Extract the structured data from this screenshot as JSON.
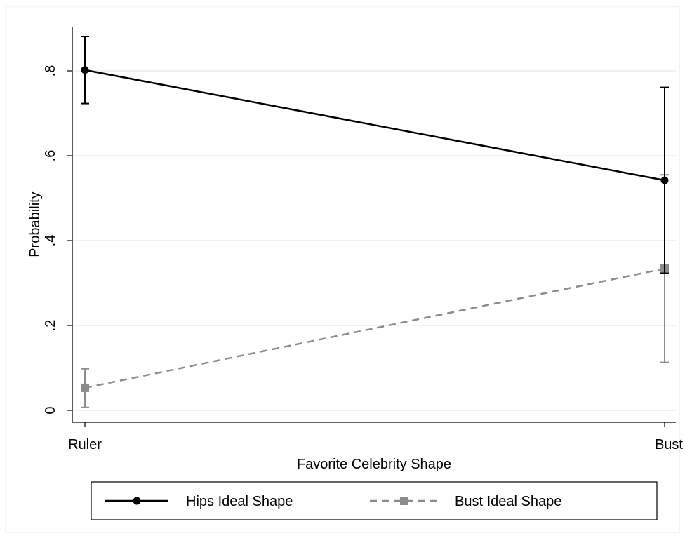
{
  "chart_data": {
    "type": "line",
    "title": "",
    "xlabel": "Favorite Celebrity Shape",
    "ylabel": "Probability",
    "categories": [
      "Ruler",
      "Bust"
    ],
    "ylim": [
      0,
      0.9
    ],
    "yticks": [
      0,
      0.2,
      0.4,
      0.6,
      0.8
    ],
    "ytick_labels": [
      "0",
      ".2",
      ".4",
      ".6",
      ".8"
    ],
    "grid": true,
    "legend_position": "bottom",
    "series": [
      {
        "name": "Hips Ideal Shape",
        "values": [
          0.802,
          0.542
        ],
        "ci_low": [
          0.723,
          0.323
        ],
        "ci_high": [
          0.881,
          0.761
        ],
        "color": "#000000",
        "line_style": "solid",
        "marker": "circle"
      },
      {
        "name": "Bust Ideal Shape",
        "values": [
          0.053,
          0.334
        ],
        "ci_low": [
          0.007,
          0.113
        ],
        "ci_high": [
          0.098,
          0.555
        ],
        "color": "#8c8c8c",
        "line_style": "dashed",
        "marker": "square"
      }
    ]
  },
  "colors": {
    "background": "#ffffff",
    "outer_border": "#e3e9ee",
    "gridline": "#e2ecef"
  }
}
